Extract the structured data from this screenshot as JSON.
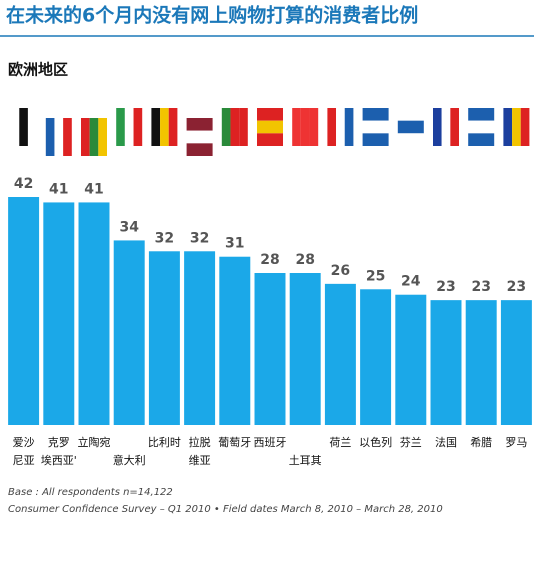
{
  "chart_data": {
    "type": "bar",
    "title": "在未来的6个月内没有网上购物打算的消费者比例",
    "subtitle": "欧洲地区",
    "categories": [
      [
        "爱沙",
        "尼亚"
      ],
      [
        "克罗",
        "埃西亚'"
      ],
      [
        "立陶宛"
      ],
      [
        "意大利"
      ],
      [
        "比利时"
      ],
      [
        "拉脱",
        "维亚"
      ],
      [
        "葡萄牙"
      ],
      [
        "西班牙"
      ],
      [
        "土耳其"
      ],
      [
        "荷兰"
      ],
      [
        "以色列"
      ],
      [
        "芬兰"
      ],
      [
        "法国"
      ],
      [
        "希腊"
      ],
      [
        "罗马"
      ]
    ],
    "values": [
      42,
      41,
      41,
      34,
      32,
      32,
      31,
      28,
      28,
      26,
      25,
      24,
      23,
      23,
      23
    ],
    "color": "#1ba8e8",
    "ylim": [
      0,
      42
    ],
    "notes": [
      "Base : All respondents n=14,122",
      "Consumer Confidence Survey – Q1 2010 • Field dates March 8, 2010 – March 28, 2010"
    ]
  }
}
